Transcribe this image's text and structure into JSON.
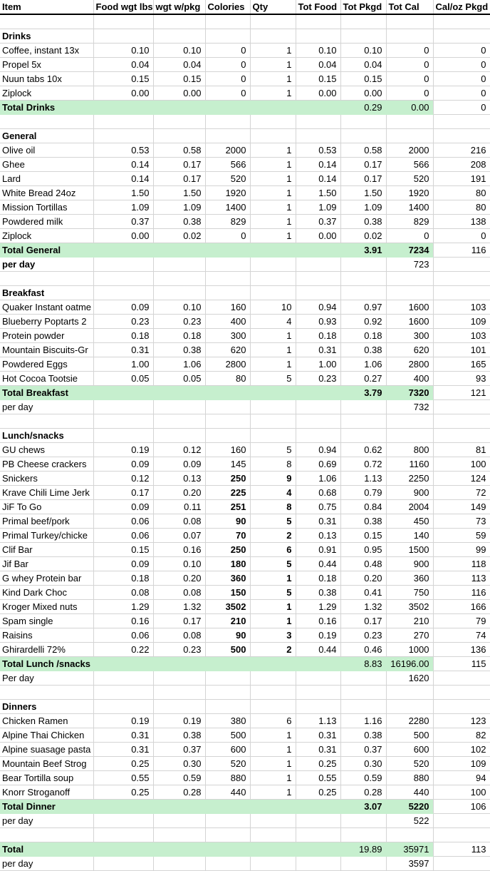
{
  "app": {
    "kind": "spreadsheet",
    "highlight_color": "#c6efce",
    "gridline_color": "#d4d4d4"
  },
  "columns": [
    "Item",
    "Food wgt lbs",
    "wgt w/pkg",
    "Colories",
    "Qty",
    "Tot Food",
    "Tot Pkgd",
    "Tot Cal",
    "Cal/oz Pkgd"
  ],
  "sections": [
    {
      "name": "Drinks",
      "items": [
        {
          "label": "Coffee, instant 13x",
          "values": [
            "0.10",
            "0.10",
            "0",
            "1",
            "0.10",
            "0.10",
            "0",
            "0"
          ]
        },
        {
          "label": "Propel 5x",
          "values": [
            "0.04",
            "0.04",
            "0",
            "1",
            "0.04",
            "0.04",
            "0",
            "0"
          ]
        },
        {
          "label": "Nuun tabs 10x",
          "values": [
            "0.15",
            "0.15",
            "0",
            "1",
            "0.15",
            "0.15",
            "0",
            "0"
          ]
        },
        {
          "label": "Ziplock",
          "values": [
            "0.00",
            "0.00",
            "0",
            "1",
            "0.00",
            "0.00",
            "0",
            "0"
          ]
        }
      ],
      "total": {
        "label": "Total Drinks",
        "tot_pkgd": "0.29",
        "tot_cal": "0.00",
        "cal_oz": "0",
        "bold_values": false
      }
    },
    {
      "name": "General",
      "items": [
        {
          "label": "Olive oil",
          "values": [
            "0.53",
            "0.58",
            "2000",
            "1",
            "0.53",
            "0.58",
            "2000",
            "216"
          ]
        },
        {
          "label": "Ghee",
          "values": [
            "0.14",
            "0.17",
            "566",
            "1",
            "0.14",
            "0.17",
            "566",
            "208"
          ]
        },
        {
          "label": "Lard",
          "values": [
            "0.14",
            "0.17",
            "520",
            "1",
            "0.14",
            "0.17",
            "520",
            "191"
          ]
        },
        {
          "label": "White Bread 24oz",
          "values": [
            "1.50",
            "1.50",
            "1920",
            "1",
            "1.50",
            "1.50",
            "1920",
            "80"
          ]
        },
        {
          "label": "Mission Tortillas",
          "values": [
            "1.09",
            "1.09",
            "1400",
            "1",
            "1.09",
            "1.09",
            "1400",
            "80"
          ]
        },
        {
          "label": "Powdered milk",
          "values": [
            "0.37",
            "0.38",
            "829",
            "1",
            "0.37",
            "0.38",
            "829",
            "138"
          ]
        },
        {
          "label": "Ziplock",
          "values": [
            "0.00",
            "0.02",
            "0",
            "1",
            "0.00",
            "0.02",
            "0",
            "0"
          ]
        }
      ],
      "total": {
        "label": "Total General",
        "tot_pkgd": "3.91",
        "tot_cal": "7234",
        "cal_oz": "116",
        "bold_values": true
      },
      "per_day": {
        "label": "per day",
        "tot_cal": "723",
        "bold_label": true
      }
    },
    {
      "name": "Breakfast",
      "items": [
        {
          "label": "Quaker Instant oatme",
          "values": [
            "0.09",
            "0.10",
            "160",
            "10",
            "0.94",
            "0.97",
            "1600",
            "103"
          ]
        },
        {
          "label": "Blueberry Poptarts 2",
          "values": [
            "0.23",
            "0.23",
            "400",
            "4",
            "0.93",
            "0.92",
            "1600",
            "109"
          ]
        },
        {
          "label": "Protein powder",
          "values": [
            "0.18",
            "0.18",
            "300",
            "1",
            "0.18",
            "0.18",
            "300",
            "103"
          ]
        },
        {
          "label": "Mountain Biscuits-Gr",
          "values": [
            "0.31",
            "0.38",
            "620",
            "1",
            "0.31",
            "0.38",
            "620",
            "101"
          ]
        },
        {
          "label": "Powdered Eggs",
          "values": [
            "1.00",
            "1.06",
            "2800",
            "1",
            "1.00",
            "1.06",
            "2800",
            "165"
          ]
        },
        {
          "label": "Hot Cocoa Tootsie",
          "values": [
            "0.05",
            "0.05",
            "80",
            "5",
            "0.23",
            "0.27",
            "400",
            "93"
          ]
        }
      ],
      "total": {
        "label": "Total Breakfast",
        "tot_pkgd": "3.79",
        "tot_cal": "7320",
        "cal_oz": "121",
        "bold_values": true
      },
      "per_day": {
        "label": "per day",
        "tot_cal": "732",
        "bold_label": false
      }
    },
    {
      "name": "Lunch/snacks",
      "items": [
        {
          "label": "GU chews",
          "values": [
            "0.19",
            "0.12",
            "160",
            "5",
            "0.94",
            "0.62",
            "800",
            "81"
          ]
        },
        {
          "label": "PB Cheese crackers",
          "values": [
            "0.09",
            "0.09",
            "145",
            "8",
            "0.69",
            "0.72",
            "1160",
            "100"
          ]
        },
        {
          "label": "Snickers",
          "values": [
            "0.12",
            "0.13",
            "250",
            "9",
            "1.06",
            "1.13",
            "2250",
            "124"
          ],
          "emphasis": true
        },
        {
          "label": "Krave Chili Lime Jerk",
          "values": [
            "0.17",
            "0.20",
            "225",
            "4",
            "0.68",
            "0.79",
            "900",
            "72"
          ],
          "emphasis": true
        },
        {
          "label": "JiF To Go",
          "values": [
            "0.09",
            "0.11",
            "251",
            "8",
            "0.75",
            "0.84",
            "2004",
            "149"
          ],
          "emphasis": true
        },
        {
          "label": "Primal beef/pork",
          "values": [
            "0.06",
            "0.08",
            "90",
            "5",
            "0.31",
            "0.38",
            "450",
            "73"
          ],
          "emphasis": true
        },
        {
          "label": "Primal Turkey/chicke",
          "values": [
            "0.06",
            "0.07",
            "70",
            "2",
            "0.13",
            "0.15",
            "140",
            "59"
          ],
          "emphasis": true
        },
        {
          "label": "Clif Bar",
          "values": [
            "0.15",
            "0.16",
            "250",
            "6",
            "0.91",
            "0.95",
            "1500",
            "99"
          ],
          "emphasis": true
        },
        {
          "label": "Jif Bar",
          "values": [
            "0.09",
            "0.10",
            "180",
            "5",
            "0.44",
            "0.48",
            "900",
            "118"
          ],
          "emphasis": true
        },
        {
          "label": "G whey Protein bar",
          "values": [
            "0.18",
            "0.20",
            "360",
            "1",
            "0.18",
            "0.20",
            "360",
            "113"
          ],
          "emphasis": true
        },
        {
          "label": "Kind Dark Choc",
          "values": [
            "0.08",
            "0.08",
            "150",
            "5",
            "0.38",
            "0.41",
            "750",
            "116"
          ],
          "emphasis": true
        },
        {
          "label": "Kroger Mixed nuts",
          "values": [
            "1.29",
            "1.32",
            "3502",
            "1",
            "1.29",
            "1.32",
            "3502",
            "166"
          ],
          "emphasis": true
        },
        {
          "label": "Spam single",
          "values": [
            "0.16",
            "0.17",
            "210",
            "1",
            "0.16",
            "0.17",
            "210",
            "79"
          ],
          "emphasis": true
        },
        {
          "label": "Raisins",
          "values": [
            "0.06",
            "0.08",
            "90",
            "3",
            "0.19",
            "0.23",
            "270",
            "74"
          ],
          "emphasis": true
        },
        {
          "label": "Ghirardelli 72%",
          "values": [
            "0.22",
            "0.23",
            "500",
            "2",
            "0.44",
            "0.46",
            "1000",
            "136"
          ],
          "emphasis": true
        }
      ],
      "total": {
        "label": "Total Lunch /snacks",
        "tot_pkgd": "8.83",
        "tot_cal": "16196.00",
        "cal_oz": "115",
        "bold_values": false
      },
      "per_day": {
        "label": "Per day",
        "tot_cal": "1620",
        "bold_label": false
      }
    },
    {
      "name": "Dinners",
      "items": [
        {
          "label": "Chicken Ramen",
          "values": [
            "0.19",
            "0.19",
            "380",
            "6",
            "1.13",
            "1.16",
            "2280",
            "123"
          ]
        },
        {
          "label": "Alpine Thai Chicken",
          "values": [
            "0.31",
            "0.38",
            "500",
            "1",
            "0.31",
            "0.38",
            "500",
            "82"
          ]
        },
        {
          "label": "Alpine suasage pasta",
          "values": [
            "0.31",
            "0.37",
            "600",
            "1",
            "0.31",
            "0.37",
            "600",
            "102"
          ]
        },
        {
          "label": "Mountain Beef Strog",
          "values": [
            "0.25",
            "0.30",
            "520",
            "1",
            "0.25",
            "0.30",
            "520",
            "109"
          ]
        },
        {
          "label": "Bear Tortilla soup",
          "values": [
            "0.55",
            "0.59",
            "880",
            "1",
            "0.55",
            "0.59",
            "880",
            "94"
          ]
        },
        {
          "label": "Knorr Stroganoff",
          "values": [
            "0.25",
            "0.28",
            "440",
            "1",
            "0.25",
            "0.28",
            "440",
            "100"
          ]
        }
      ],
      "total": {
        "label": "Total Dinner",
        "tot_pkgd": "3.07",
        "tot_cal": "5220",
        "cal_oz": "106",
        "bold_values": true
      },
      "per_day": {
        "label": "per day",
        "tot_cal": "522",
        "bold_label": false
      }
    },
    {
      "name": "",
      "items": [],
      "total": {
        "label": "Total",
        "tot_pkgd": "19.89",
        "tot_cal": "35971",
        "cal_oz": "113",
        "bold_values": false
      },
      "per_day": {
        "label": "per day",
        "tot_cal": "3597",
        "bold_label": false
      }
    }
  ]
}
